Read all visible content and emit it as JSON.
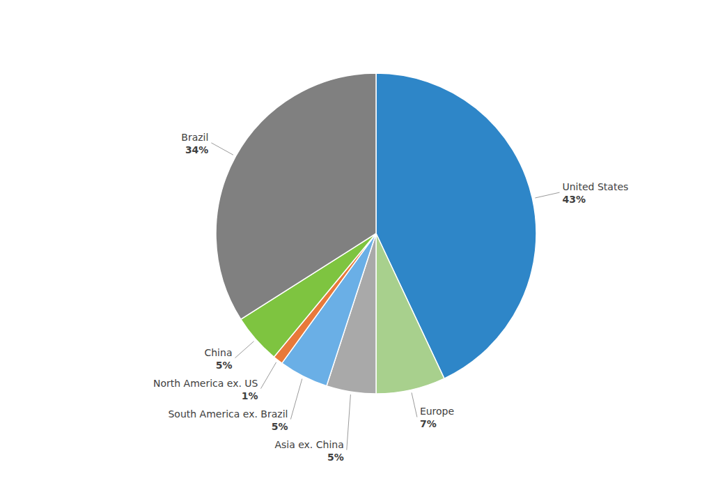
{
  "chart_data": {
    "type": "pie",
    "categories": [
      "United States",
      "Europe",
      "Asia ex. China",
      "South America ex. Brazil",
      "North America ex. US",
      "China",
      "Brazil"
    ],
    "values": [
      43,
      7,
      5,
      5,
      1,
      5,
      34
    ],
    "value_labels": [
      "43%",
      "7%",
      "5%",
      "5%",
      "1%",
      "5%",
      "34%"
    ],
    "colors": [
      "#2E86C8",
      "#A8D08D",
      "#A9A9A9",
      "#6AAFE6",
      "#E8793A",
      "#7EC440",
      "#808080"
    ],
    "data_labels": true
  }
}
